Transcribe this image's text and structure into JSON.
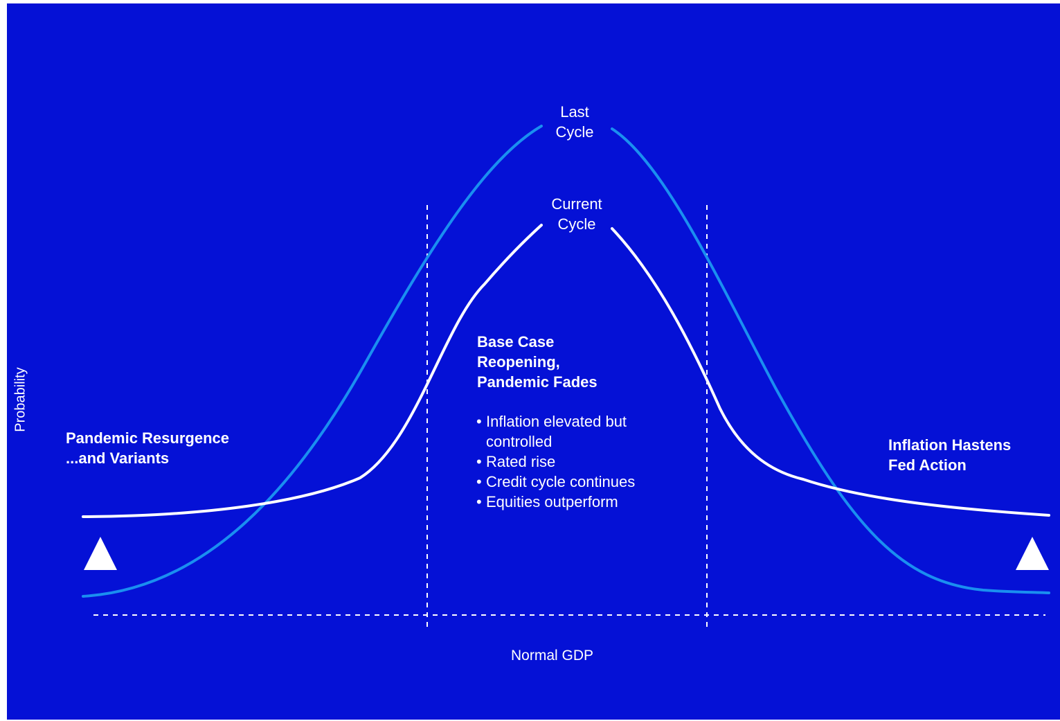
{
  "colors": {
    "background": "#0511d6",
    "last_cycle_curve": "#1a8ff0",
    "current_cycle_curve": "#ffffff",
    "guides": "#ffffff"
  },
  "axes": {
    "y_label": "Probability",
    "x_label": "Normal GDP"
  },
  "curves": {
    "last_cycle": {
      "label_line1": "Last",
      "label_line2": "Cycle"
    },
    "current_cycle": {
      "label_line1": "Current",
      "label_line2": "Cycle"
    }
  },
  "scenarios": {
    "left": {
      "line1": "Pandemic Resurgence",
      "line2": "...and Variants",
      "marker": "triangle-up-icon"
    },
    "right": {
      "line1": "Inflation Hastens",
      "line2": "Fed Action",
      "marker": "triangle-up-icon"
    },
    "base": {
      "line1": "Base Case",
      "line2": "Reopening,",
      "line3": "Pandemic Fades",
      "bullet_glyph": "•",
      "bullets": [
        {
          "line1": "Inflation elevated but",
          "line2": "controlled"
        },
        {
          "line1": "Rated rise"
        },
        {
          "line1": "Credit cycle continues"
        },
        {
          "line1": "Equities outperform"
        }
      ]
    }
  }
}
